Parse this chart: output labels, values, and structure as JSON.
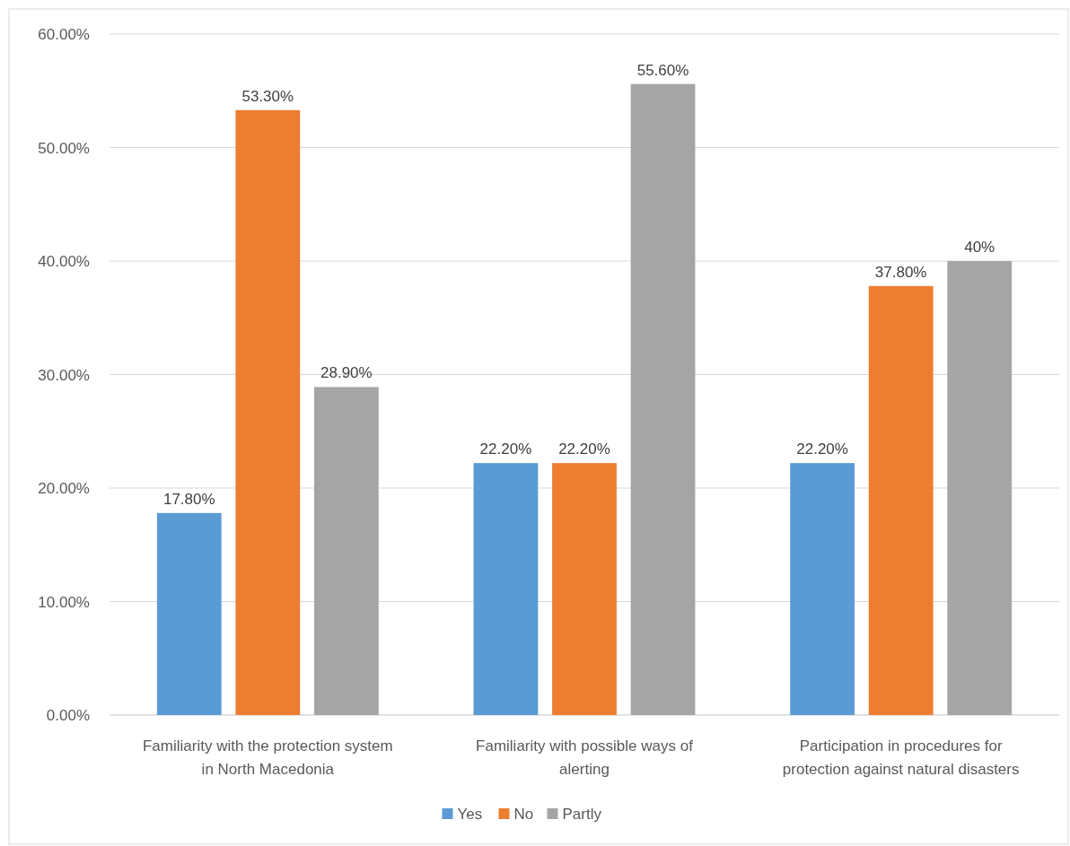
{
  "chart_data": {
    "type": "bar",
    "categories": [
      "Familiarity with the protection system in North Macedonia",
      "Familiarity with possible ways of alerting",
      "Participation in procedures for protection against natural disasters"
    ],
    "series": [
      {
        "name": "Yes",
        "color": "#5b9bd5",
        "values": [
          17.8,
          22.2,
          22.2
        ],
        "value_labels": [
          "17.80%",
          "22.20%",
          "22.20%"
        ]
      },
      {
        "name": "No",
        "color": "#ed7d31",
        "values": [
          53.3,
          22.2,
          37.8
        ],
        "value_labels": [
          "53.30%",
          "22.20%",
          "37.80%"
        ]
      },
      {
        "name": "Partly",
        "color": "#a5a5a5",
        "values": [
          28.9,
          55.6,
          40
        ],
        "value_labels": [
          "28.90%",
          "55.60%",
          "40%"
        ]
      }
    ],
    "ylim": [
      0,
      60
    ],
    "yticks": [
      {
        "value": 0,
        "label": "0.00%"
      },
      {
        "value": 10,
        "label": "10.00%"
      },
      {
        "value": 20,
        "label": "20.00%"
      },
      {
        "value": 30,
        "label": "30.00%"
      },
      {
        "value": 40,
        "label": "40.00%"
      },
      {
        "value": 50,
        "label": "50.00%"
      },
      {
        "value": 60,
        "label": "60.00%"
      }
    ],
    "grid": "y",
    "legend": "bottom"
  }
}
